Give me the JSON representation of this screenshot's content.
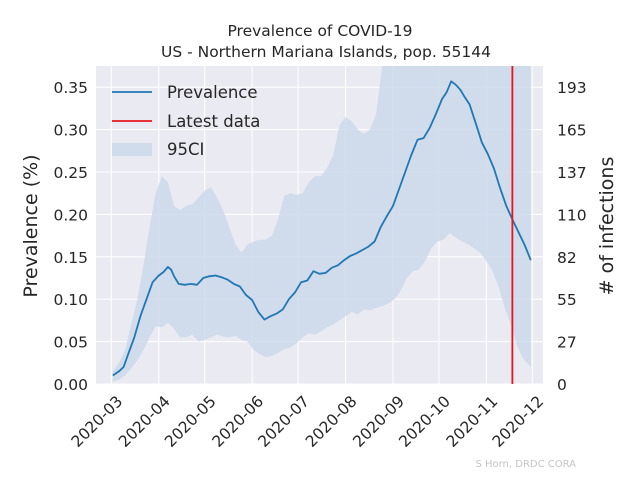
{
  "chart_data": {
    "type": "line",
    "title": "Prevalence of COVID-19",
    "subtitle": "US - Northern Mariana Islands, pop. 55144",
    "ylabel": "Prevalence (%)",
    "ylabel_right": "# of infections",
    "credit": "S Horn, DRDC CORA",
    "grid": true,
    "legend_position": "upper-left",
    "x_range": [
      "2020-02-20",
      "2020-12-08"
    ],
    "ylim": [
      0,
      0.375
    ],
    "x_ticks": [
      "2020-03",
      "2020-04",
      "2020-05",
      "2020-06",
      "2020-07",
      "2020-08",
      "2020-09",
      "2020-10",
      "2020-11",
      "2020-12"
    ],
    "y_ticks": [
      "0.00",
      "0.05",
      "0.10",
      "0.15",
      "0.20",
      "0.25",
      "0.30",
      "0.35"
    ],
    "y_ticks_right": [
      "0",
      "27",
      "55",
      "82",
      "110",
      "137",
      "165",
      "193"
    ],
    "latest_data_date": "2020-11-18",
    "colors": {
      "prevalence": "#1f77b4",
      "latest": "#e8151b",
      "ci": "#c7d5e8",
      "plot_bg": "#eaeaf2",
      "grid": "#ffffff"
    },
    "series": [
      {
        "name": "Prevalence",
        "x": [
          "2020-03-02",
          "2020-03-06",
          "2020-03-09",
          "2020-03-12",
          "2020-03-16",
          "2020-03-20",
          "2020-03-24",
          "2020-03-28",
          "2020-04-01",
          "2020-04-04",
          "2020-04-07",
          "2020-04-09",
          "2020-04-11",
          "2020-04-14",
          "2020-04-18",
          "2020-04-22",
          "2020-04-26",
          "2020-04-30",
          "2020-05-04",
          "2020-05-08",
          "2020-05-12",
          "2020-05-16",
          "2020-05-20",
          "2020-05-24",
          "2020-05-28",
          "2020-06-01",
          "2020-06-05",
          "2020-06-09",
          "2020-06-13",
          "2020-06-17",
          "2020-06-21",
          "2020-06-25",
          "2020-06-29",
          "2020-07-03",
          "2020-07-07",
          "2020-07-11",
          "2020-07-15",
          "2020-07-19",
          "2020-07-23",
          "2020-07-27",
          "2020-07-31",
          "2020-08-04",
          "2020-08-08",
          "2020-08-12",
          "2020-08-16",
          "2020-08-20",
          "2020-08-24",
          "2020-08-28",
          "2020-09-01",
          "2020-09-05",
          "2020-09-09",
          "2020-09-13",
          "2020-09-17",
          "2020-09-21",
          "2020-09-25",
          "2020-09-29",
          "2020-10-03",
          "2020-10-06",
          "2020-10-09",
          "2020-10-12",
          "2020-10-15",
          "2020-10-18",
          "2020-10-21",
          "2020-10-25",
          "2020-10-29",
          "2020-11-02",
          "2020-11-06",
          "2020-11-10",
          "2020-11-14",
          "2020-11-18",
          "2020-11-22",
          "2020-11-26",
          "2020-11-30"
        ],
        "y": [
          0.01,
          0.015,
          0.02,
          0.035,
          0.055,
          0.08,
          0.1,
          0.12,
          0.128,
          0.132,
          0.138,
          0.135,
          0.127,
          0.118,
          0.117,
          0.118,
          0.117,
          0.125,
          0.127,
          0.128,
          0.126,
          0.123,
          0.118,
          0.115,
          0.105,
          0.099,
          0.085,
          0.076,
          0.08,
          0.083,
          0.088,
          0.1,
          0.108,
          0.12,
          0.122,
          0.133,
          0.13,
          0.131,
          0.137,
          0.14,
          0.146,
          0.151,
          0.154,
          0.158,
          0.162,
          0.168,
          0.185,
          0.198,
          0.21,
          0.23,
          0.25,
          0.27,
          0.288,
          0.29,
          0.302,
          0.318,
          0.336,
          0.344,
          0.357,
          0.353,
          0.347,
          0.338,
          0.33,
          0.308,
          0.285,
          0.271,
          0.254,
          0.231,
          0.21,
          0.194,
          0.179,
          0.164,
          0.146
        ]
      },
      {
        "name": "95CI",
        "x": [
          "2020-03-02",
          "2020-03-06",
          "2020-03-10",
          "2020-03-14",
          "2020-03-18",
          "2020-03-22",
          "2020-03-26",
          "2020-03-30",
          "2020-04-03",
          "2020-04-07",
          "2020-04-11",
          "2020-04-15",
          "2020-04-19",
          "2020-04-23",
          "2020-04-27",
          "2020-05-01",
          "2020-05-05",
          "2020-05-09",
          "2020-05-13",
          "2020-05-17",
          "2020-05-21",
          "2020-05-25",
          "2020-05-29",
          "2020-06-02",
          "2020-06-06",
          "2020-06-10",
          "2020-06-14",
          "2020-06-18",
          "2020-06-22",
          "2020-06-26",
          "2020-06-30",
          "2020-07-04",
          "2020-07-08",
          "2020-07-12",
          "2020-07-16",
          "2020-07-20",
          "2020-07-24",
          "2020-07-28",
          "2020-08-01",
          "2020-08-05",
          "2020-08-09",
          "2020-08-13",
          "2020-08-17",
          "2020-08-21",
          "2020-08-25",
          "2020-08-29",
          "2020-09-02",
          "2020-09-06",
          "2020-09-10",
          "2020-09-14",
          "2020-09-18",
          "2020-09-22",
          "2020-09-26",
          "2020-09-30",
          "2020-10-04",
          "2020-10-08",
          "2020-10-12",
          "2020-10-16",
          "2020-10-20",
          "2020-10-24",
          "2020-10-28",
          "2020-11-01",
          "2020-11-05",
          "2020-11-09",
          "2020-11-13",
          "2020-11-17",
          "2020-11-21",
          "2020-11-25",
          "2020-11-30"
        ],
        "lower": [
          0.003,
          0.005,
          0.01,
          0.018,
          0.028,
          0.04,
          0.055,
          0.068,
          0.067,
          0.072,
          0.065,
          0.055,
          0.055,
          0.058,
          0.05,
          0.052,
          0.055,
          0.058,
          0.056,
          0.055,
          0.057,
          0.052,
          0.05,
          0.04,
          0.035,
          0.032,
          0.033,
          0.037,
          0.041,
          0.043,
          0.048,
          0.055,
          0.06,
          0.058,
          0.062,
          0.067,
          0.07,
          0.075,
          0.08,
          0.085,
          0.082,
          0.088,
          0.087,
          0.09,
          0.092,
          0.095,
          0.1,
          0.11,
          0.125,
          0.133,
          0.135,
          0.145,
          0.16,
          0.168,
          0.17,
          0.178,
          0.173,
          0.168,
          0.165,
          0.16,
          0.155,
          0.145,
          0.133,
          0.115,
          0.09,
          0.07,
          0.045,
          0.03,
          0.02
        ],
        "upper": [
          0.015,
          0.025,
          0.04,
          0.07,
          0.1,
          0.14,
          0.185,
          0.225,
          0.245,
          0.238,
          0.21,
          0.205,
          0.21,
          0.212,
          0.22,
          0.228,
          0.232,
          0.22,
          0.205,
          0.185,
          0.165,
          0.155,
          0.165,
          0.168,
          0.17,
          0.17,
          0.175,
          0.195,
          0.222,
          0.225,
          0.223,
          0.225,
          0.238,
          0.245,
          0.245,
          0.255,
          0.27,
          0.305,
          0.315,
          0.31,
          0.3,
          0.295,
          0.3,
          0.318,
          0.375,
          0.375,
          0.375,
          0.375,
          0.375,
          0.375,
          0.375,
          0.375,
          0.375,
          0.375,
          0.375,
          0.375,
          0.375,
          0.375,
          0.375,
          0.375,
          0.375,
          0.375,
          0.375,
          0.375,
          0.375,
          0.375,
          0.375,
          0.375,
          0.375
        ]
      },
      {
        "name": "Latest data"
      }
    ]
  }
}
